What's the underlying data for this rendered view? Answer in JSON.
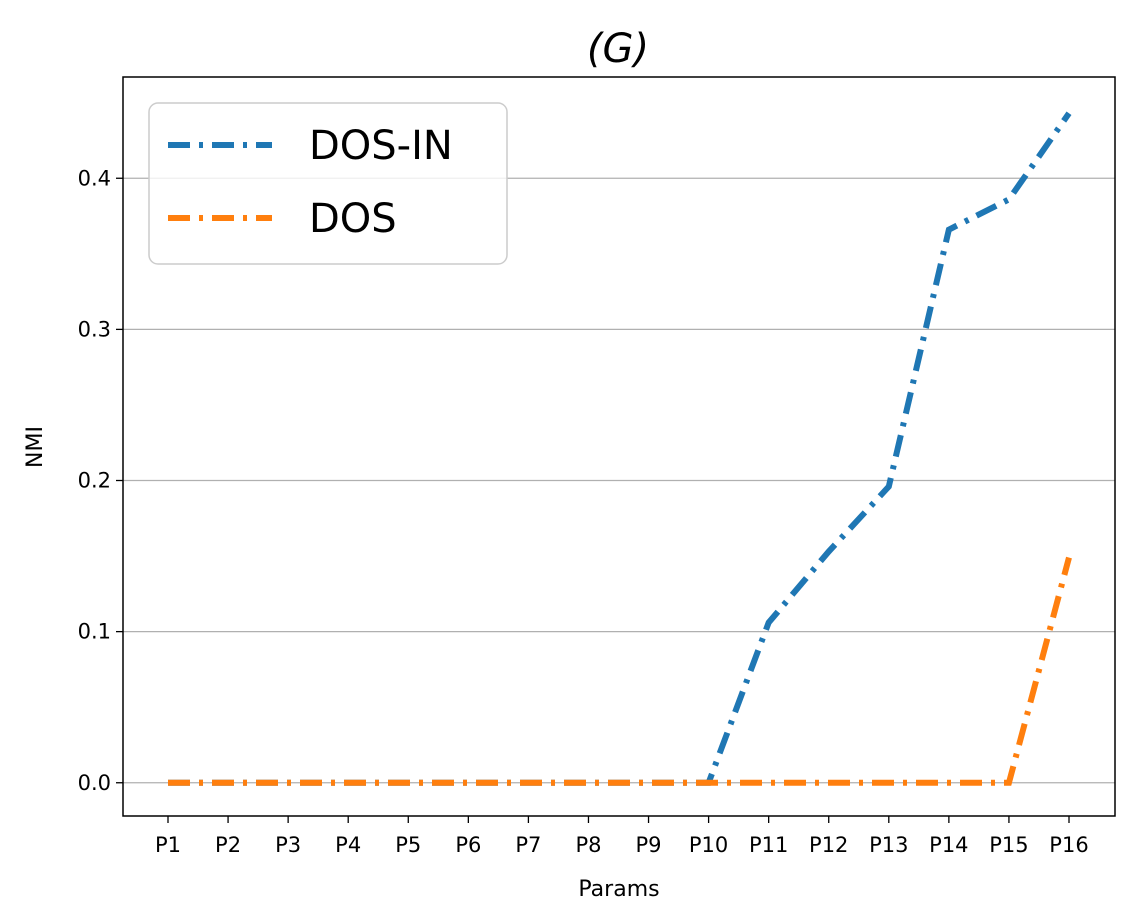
{
  "chart_data": {
    "type": "line",
    "title": "(G)",
    "xlabel": "Params",
    "ylabel": "NMI",
    "categories": [
      "P1",
      "P2",
      "P3",
      "P4",
      "P5",
      "P6",
      "P7",
      "P8",
      "P9",
      "P10",
      "P11",
      "P12",
      "P13",
      "P14",
      "P15",
      "P16"
    ],
    "ylim": [
      -0.022,
      0.467
    ],
    "yticks": [
      0.0,
      0.1,
      0.2,
      0.3,
      0.4
    ],
    "ytick_labels": [
      "0.0",
      "0.1",
      "0.2",
      "0.3",
      "0.4"
    ],
    "grid": "y",
    "legend_position": "top-left",
    "series": [
      {
        "name": "DOS-IN",
        "color": "#1f77b4",
        "linestyle": "dash-dot",
        "values": [
          0,
          0,
          0,
          0,
          0,
          0,
          0,
          0,
          0,
          0,
          0.106,
          0.153,
          0.196,
          0.366,
          0.386,
          0.443
        ]
      },
      {
        "name": "DOS",
        "color": "#ff7f0e",
        "linestyle": "dash-dot",
        "values": [
          0,
          0,
          0,
          0,
          0,
          0,
          0,
          0,
          0,
          0,
          0,
          0,
          0,
          0,
          0,
          0.149
        ]
      }
    ]
  }
}
